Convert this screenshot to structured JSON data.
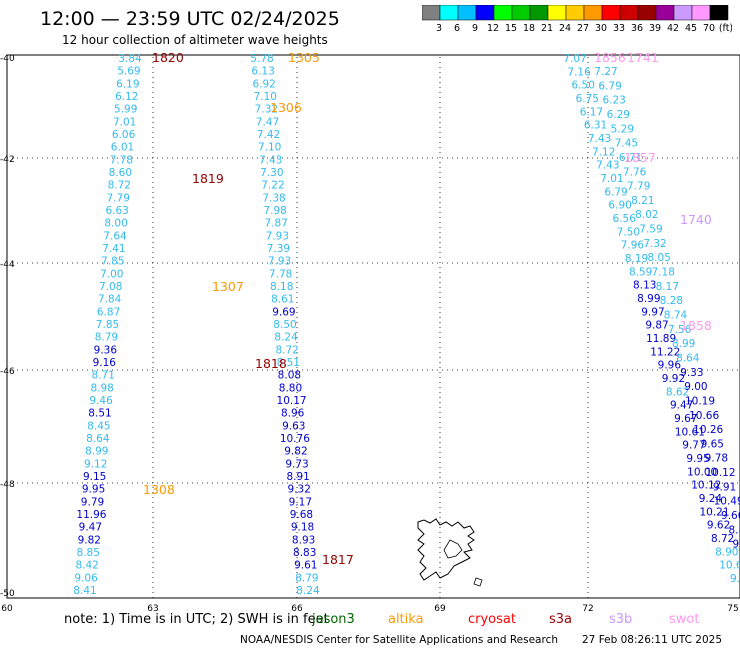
{
  "header": {
    "title": "12:00 — 23:59 UTC 02/24/2025",
    "subtitle": "12 hour collection of altimeter wave heights"
  },
  "colorbar": {
    "ticks": [
      "3",
      "6",
      "9",
      "12",
      "15",
      "18",
      "21",
      "24",
      "27",
      "30",
      "33",
      "36",
      "39",
      "42",
      "45",
      "70",
      "(ft)"
    ],
    "colors": [
      "#808080",
      "#00ffff",
      "#00bfff",
      "#0000ff",
      "#00ff00",
      "#00cc00",
      "#009900",
      "#ffff00",
      "#ffcc00",
      "#ff9900",
      "#ff0000",
      "#cc0000",
      "#990000",
      "#990099",
      "#cc99ff",
      "#ff99ff",
      "#000000"
    ]
  },
  "axes": {
    "lat_labels": [
      "-40",
      "-42",
      "-44",
      "-46",
      "-48",
      "-50"
    ],
    "lon_labels": [
      "60",
      "63",
      "66",
      "69",
      "72",
      "75"
    ]
  },
  "track_colors": {
    "c": "#33bbee",
    "b": "#0000cc",
    "o": "#ff9900",
    "d": "#990000",
    "v": "#cc99ff",
    "p": "#ff99ee"
  },
  "tracks": [
    {
      "values": [
        "3.84",
        "5.69",
        "6.19",
        "6.12",
        "5.99",
        "7.01",
        "6.06",
        "6.01",
        "7.78",
        "8.60",
        "8.72",
        "7.79",
        "6.63",
        "8.00",
        "7.64",
        "7.41",
        "7.85",
        "7.00",
        "7.08",
        "7.84",
        "6.87",
        "7.85",
        "8.79",
        "9.36",
        "9.16",
        "8.71",
        "8.98",
        "9.46",
        "8.51",
        "8.45",
        "8.64",
        "8.99",
        "9.12",
        "9.15",
        "9.95",
        "9.79",
        "11.96",
        "9.47",
        "9.82",
        "8.85",
        "8.42",
        "9.06",
        "8.41"
      ]
    },
    {
      "values": [
        "5.78",
        "6.13",
        "6.92",
        "7.10",
        "7.32",
        "7.47",
        "7.42",
        "7.10",
        "7.43",
        "7.30",
        "7.22",
        "7.38",
        "7.98",
        "7.87",
        "7.93",
        "7.39",
        "7.93",
        "7.78",
        "8.18",
        "8.61",
        "9.69",
        "8.50",
        "8.24",
        "8.72",
        "8.51",
        "8.08",
        "8.80",
        "10.17",
        "8.96",
        "9.63",
        "10.76",
        "9.82",
        "9.73",
        "8.91",
        "9.32",
        "9.17",
        "9.68",
        "9.18",
        "8.93",
        "8.83",
        "9.61",
        "8.79",
        "8.24"
      ]
    },
    {
      "values": [
        "7.07",
        "7.16",
        "6.50",
        "6.75",
        "6.17",
        "6.31",
        "7.43",
        "7.12",
        "7.43",
        "7.01",
        "6.79",
        "6.90",
        "6.56",
        "7.50",
        "7.96",
        "8.19",
        "8.59",
        "8.13",
        "8.99",
        "9.97",
        "9.87",
        "11.89",
        "11.22",
        "9.96",
        "9.92",
        "8.62",
        "9.47",
        "9.67",
        "10.61",
        "9.77",
        "9.95",
        "10.00",
        "10.12",
        "9.24",
        "10.21",
        "9.62",
        "8.72",
        "8.90",
        "10.6",
        "9."
      ]
    },
    {
      "values": [
        "7.27",
        "6.79",
        "6.23",
        "6.29",
        "5.29",
        "7.45",
        "6.71",
        "7.76",
        "7.79",
        "8.21",
        "8.02",
        "7.59",
        "7.32",
        "8.05",
        "7.18",
        "8.17",
        "8.28",
        "8.74",
        "7.56",
        "8.99",
        "8.64",
        "9.33",
        "9.00",
        "10.19",
        "10.66",
        "10.26",
        "9.65",
        "9.78",
        "10.12",
        "9.91",
        "10.49",
        "9.60",
        "8.8",
        "9.5",
        "9."
      ]
    }
  ],
  "passes": [
    {
      "id": "1820",
      "sat": "d"
    },
    {
      "id": "1305",
      "sat": "o"
    },
    {
      "id": "1306",
      "sat": "o"
    },
    {
      "id": "1819",
      "sat": "d"
    },
    {
      "id": "1307",
      "sat": "o"
    },
    {
      "id": "1818",
      "sat": "d"
    },
    {
      "id": "1308",
      "sat": "o"
    },
    {
      "id": "1817",
      "sat": "d"
    },
    {
      "id": "1856",
      "sat": "p"
    },
    {
      "id": "1741",
      "sat": "p"
    },
    {
      "id": "1857",
      "sat": "p"
    },
    {
      "id": "1740",
      "sat": "v"
    },
    {
      "id": "1858",
      "sat": "p"
    }
  ],
  "footer": {
    "note": "note:  1) Time is in UTC; 2) SWH is in feet",
    "satellites": [
      {
        "name": "jason3",
        "color": "#006600"
      },
      {
        "name": "altika",
        "color": "#ff9900"
      },
      {
        "name": "cryosat",
        "color": "#ff0000"
      },
      {
        "name": "s3a",
        "color": "#990000"
      },
      {
        "name": "s3b",
        "color": "#cc99ff"
      },
      {
        "name": "swot",
        "color": "#ff99ee"
      }
    ],
    "credit": "NOAA/NESDIS Center for Satellite Applications and Research",
    "timestamp": "27 Feb 08:26:11 UTC 2025"
  }
}
